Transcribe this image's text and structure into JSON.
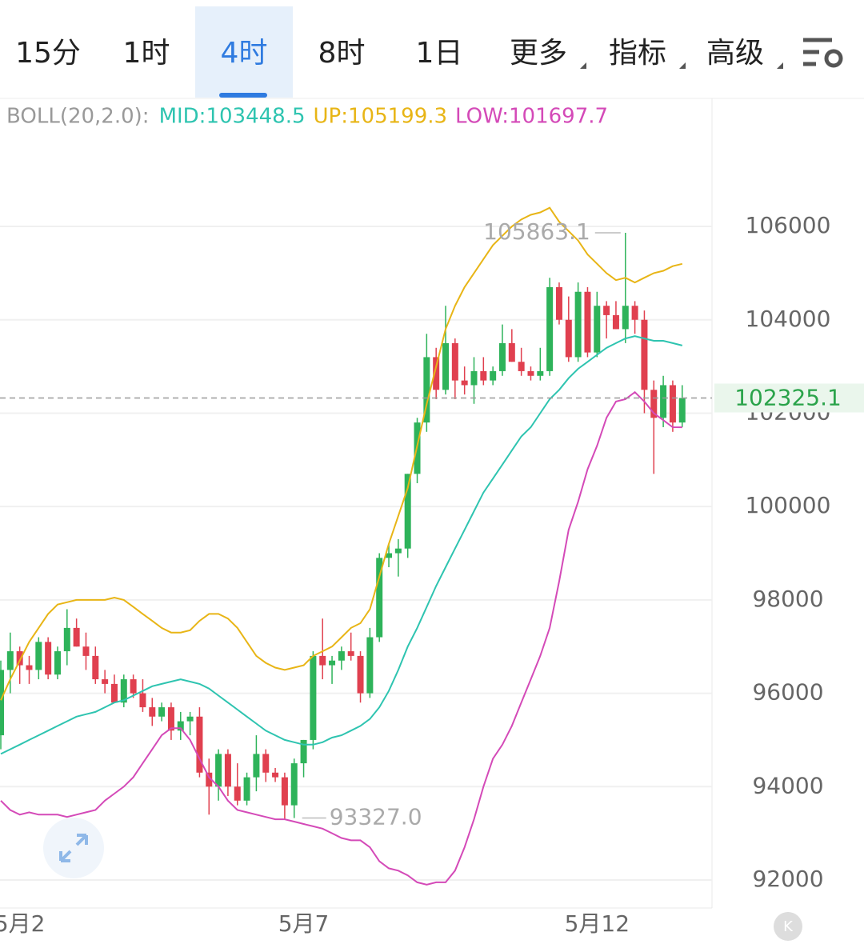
{
  "tabs": [
    "15分",
    "1时",
    "4时",
    "8时",
    "1日",
    "更多",
    "指标",
    "高级"
  ],
  "active_tab": 2,
  "indicator": {
    "label": "BOLL(20,2.0):",
    "items": [
      {
        "text": "MID:103448.5",
        "color": "#2ec4b0"
      },
      {
        "text": "UP:105199.3",
        "color": "#e8b516"
      },
      {
        "text": "LOW:101697.7",
        "color": "#d44ab8"
      }
    ]
  },
  "chart_data": {
    "type": "candlestick",
    "categories": [
      null,
      null,
      "5月2",
      null,
      null,
      null,
      null,
      null,
      null,
      null,
      null,
      null,
      null,
      null,
      null,
      null,
      null,
      null,
      null,
      null,
      null,
      null,
      null,
      null,
      null,
      null,
      null,
      null,
      null,
      null,
      null,
      null,
      "5月7",
      null,
      null,
      null,
      null,
      null,
      null,
      null,
      null,
      null,
      null,
      null,
      null,
      null,
      null,
      null,
      null,
      null,
      null,
      null,
      null,
      null,
      null,
      null,
      null,
      null,
      null,
      null,
      null,
      null,
      null,
      "5月12",
      null,
      null,
      null,
      null,
      null,
      null,
      null,
      null,
      null
    ],
    "open": [
      95100,
      96500,
      96900,
      96600,
      96500,
      97100,
      96400,
      96900,
      97400,
      97000,
      96800,
      96300,
      96200,
      95800,
      96300,
      96000,
      95700,
      95500,
      95700,
      95200,
      95400,
      95500,
      94300,
      94000,
      94700,
      94000,
      93700,
      94200,
      94700,
      94300,
      94200,
      93600,
      94500,
      95000,
      96800,
      96600,
      96700,
      96900,
      96800,
      96000,
      97200,
      98900,
      99000,
      99100,
      100700,
      101800,
      103200,
      102500,
      103500,
      102700,
      102600,
      102900,
      102700,
      102900,
      103500,
      103100,
      102900,
      102800,
      102900,
      104700,
      104000,
      103200,
      104600,
      103300,
      104300,
      104100,
      103800,
      104300,
      104000,
      102500,
      101900,
      102600,
      101800
    ],
    "high": [
      96700,
      97300,
      97000,
      96800,
      97200,
      97200,
      97000,
      97800,
      97600,
      97300,
      97000,
      96500,
      96400,
      96400,
      96400,
      96300,
      95900,
      95800,
      95800,
      95600,
      95600,
      95700,
      94600,
      94800,
      94800,
      94500,
      94300,
      95100,
      94800,
      94400,
      94300,
      94600,
      95000,
      96900,
      97600,
      96800,
      97000,
      97300,
      96900,
      97400,
      99000,
      99200,
      99300,
      100700,
      101900,
      103700,
      103400,
      104300,
      103600,
      103000,
      103200,
      103200,
      103000,
      103900,
      103800,
      103400,
      103000,
      103400,
      104900,
      104800,
      104500,
      104800,
      104700,
      104600,
      104400,
      104400,
      105863.1,
      104400,
      104200,
      102700,
      102800,
      102700,
      102600
    ],
    "low": [
      94800,
      96000,
      96200,
      96200,
      96300,
      96300,
      96300,
      96600,
      97000,
      96500,
      96200,
      96000,
      95800,
      95700,
      95900,
      95600,
      95300,
      95400,
      95000,
      95000,
      95100,
      94200,
      93400,
      93700,
      93800,
      93600,
      93600,
      93900,
      94100,
      94100,
      93300,
      93327,
      94200,
      94800,
      96300,
      96200,
      96500,
      96700,
      95800,
      95900,
      97100,
      98700,
      98500,
      98900,
      100500,
      101600,
      102300,
      102400,
      102300,
      102400,
      102200,
      102600,
      102600,
      102800,
      103100,
      102800,
      102700,
      102700,
      102800,
      103900,
      103100,
      103100,
      103200,
      103200,
      103600,
      103800,
      103500,
      103700,
      102000,
      100700,
      101700,
      101600,
      101700
    ],
    "close": [
      96500,
      96900,
      96600,
      96500,
      97100,
      96400,
      96900,
      97400,
      97000,
      96800,
      96300,
      96200,
      95800,
      96300,
      96000,
      95700,
      95500,
      95700,
      95200,
      95400,
      95500,
      94300,
      94000,
      94700,
      94000,
      93700,
      94200,
      94700,
      94300,
      94200,
      93600,
      94500,
      95000,
      96800,
      96600,
      96700,
      96900,
      96800,
      96000,
      97200,
      98900,
      99000,
      99100,
      100700,
      101800,
      103200,
      102500,
      103500,
      102700,
      102600,
      102900,
      102700,
      102900,
      103500,
      103100,
      102900,
      102800,
      102900,
      104700,
      104000,
      103200,
      104600,
      103300,
      104300,
      104100,
      103800,
      104300,
      104000,
      102500,
      101900,
      102600,
      101800,
      102325.1
    ],
    "up_color": "#2eb35a",
    "down_color": "#e0404f",
    "series": [
      {
        "color": "#e8b516",
        "values": [
          95850,
          96300,
          96700,
          97100,
          97400,
          97700,
          97900,
          97950,
          98000,
          98000,
          98000,
          98000,
          98050,
          98000,
          97850,
          97700,
          97550,
          97400,
          97300,
          97300,
          97350,
          97550,
          97700,
          97700,
          97600,
          97400,
          97100,
          96800,
          96650,
          96550,
          96500,
          96550,
          96600,
          96800,
          96900,
          97000,
          97200,
          97400,
          97500,
          97800,
          98500,
          99200,
          99800,
          100400,
          101300,
          102200,
          103000,
          103800,
          104300,
          104700,
          105000,
          105300,
          105600,
          105800,
          106000,
          106150,
          106250,
          106300,
          106400,
          106100,
          105900,
          105700,
          105400,
          105200,
          105000,
          104850,
          104900,
          104800,
          104900,
          105000,
          105050,
          105150,
          105199.3
        ]
      },
      {
        "color": "#2ec4b0",
        "values": [
          94700,
          94800,
          94900,
          95000,
          95100,
          95200,
          95300,
          95400,
          95500,
          95550,
          95600,
          95700,
          95800,
          95850,
          95950,
          96050,
          96150,
          96200,
          96250,
          96300,
          96250,
          96200,
          96100,
          95950,
          95800,
          95650,
          95500,
          95350,
          95200,
          95100,
          95000,
          94950,
          94900,
          94900,
          94950,
          95050,
          95100,
          95200,
          95300,
          95450,
          95700,
          96050,
          96500,
          97000,
          97400,
          97850,
          98300,
          98700,
          99100,
          99500,
          99900,
          100300,
          100600,
          100900,
          101200,
          101500,
          101700,
          102000,
          102300,
          102500,
          102750,
          102950,
          103100,
          103250,
          103400,
          103500,
          103600,
          103650,
          103600,
          103550,
          103550,
          103500,
          103448.5
        ]
      },
      {
        "color": "#d44ab8",
        "values": [
          93700,
          93500,
          93400,
          93450,
          93400,
          93400,
          93400,
          93350,
          93400,
          93450,
          93500,
          93700,
          93850,
          94000,
          94200,
          94500,
          94800,
          95100,
          95250,
          95250,
          95000,
          94600,
          94200,
          94000,
          93700,
          93500,
          93450,
          93400,
          93350,
          93300,
          93300,
          93250,
          93200,
          93150,
          93100,
          93000,
          92900,
          92850,
          92850,
          92700,
          92400,
          92250,
          92200,
          92100,
          91950,
          91900,
          91950,
          91950,
          92200,
          92700,
          93300,
          94000,
          94600,
          94900,
          95300,
          95800,
          96300,
          96800,
          97400,
          98400,
          99500,
          100100,
          100800,
          101300,
          101900,
          102250,
          102300,
          102450,
          102250,
          102000,
          101850,
          101700,
          101697.7
        ]
      }
    ],
    "ylim": [
      91400,
      108760
    ],
    "yticks": [
      92000,
      94000,
      96000,
      98000,
      100000,
      102000,
      104000,
      106000
    ],
    "xlim": [
      0,
      72
    ],
    "annotations": [
      {
        "text": "105863.1",
        "index": 66,
        "value": 105863.1
      },
      {
        "text": "93327.0",
        "index": 31,
        "value": 93327
      }
    ],
    "last_price": {
      "text": "102325.1",
      "value": 102325.1
    }
  }
}
